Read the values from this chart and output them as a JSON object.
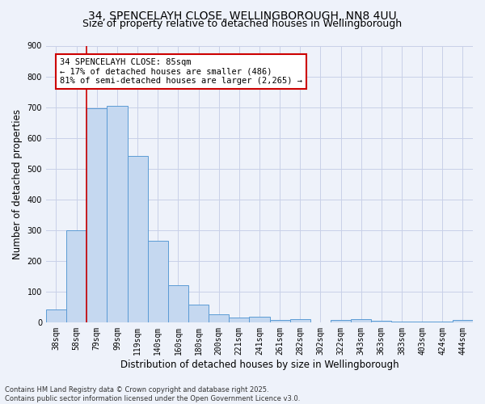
{
  "title_line1": "34, SPENCELAYH CLOSE, WELLINGBOROUGH, NN8 4UU",
  "title_line2": "Size of property relative to detached houses in Wellingborough",
  "xlabel": "Distribution of detached houses by size in Wellingborough",
  "ylabel": "Number of detached properties",
  "categories": [
    "38sqm",
    "58sqm",
    "79sqm",
    "99sqm",
    "119sqm",
    "140sqm",
    "160sqm",
    "180sqm",
    "200sqm",
    "221sqm",
    "241sqm",
    "261sqm",
    "282sqm",
    "302sqm",
    "322sqm",
    "343sqm",
    "363sqm",
    "383sqm",
    "403sqm",
    "424sqm",
    "444sqm"
  ],
  "values": [
    42,
    300,
    695,
    705,
    540,
    265,
    120,
    58,
    25,
    15,
    18,
    8,
    10,
    0,
    8,
    10,
    5,
    3,
    1,
    3,
    7
  ],
  "bar_color": "#c5d8f0",
  "bar_edge_color": "#5b9bd5",
  "vline_color": "#cc0000",
  "vline_x_index": 2,
  "annotation_line1": "34 SPENCELAYH CLOSE: 85sqm",
  "annotation_line2": "← 17% of detached houses are smaller (486)",
  "annotation_line3": "81% of semi-detached houses are larger (2,265) →",
  "annotation_box_color": "#cc0000",
  "annotation_facecolor": "white",
  "ylim": [
    0,
    900
  ],
  "yticks": [
    0,
    100,
    200,
    300,
    400,
    500,
    600,
    700,
    800,
    900
  ],
  "bg_color": "#eef2fa",
  "grid_color": "#c8d0e8",
  "footer_text": "Contains HM Land Registry data © Crown copyright and database right 2025.\nContains public sector information licensed under the Open Government Licence v3.0.",
  "title_fontsize": 10,
  "subtitle_fontsize": 9,
  "axis_label_fontsize": 8.5,
  "tick_fontsize": 7,
  "annotation_fontsize": 7.5,
  "footer_fontsize": 6
}
